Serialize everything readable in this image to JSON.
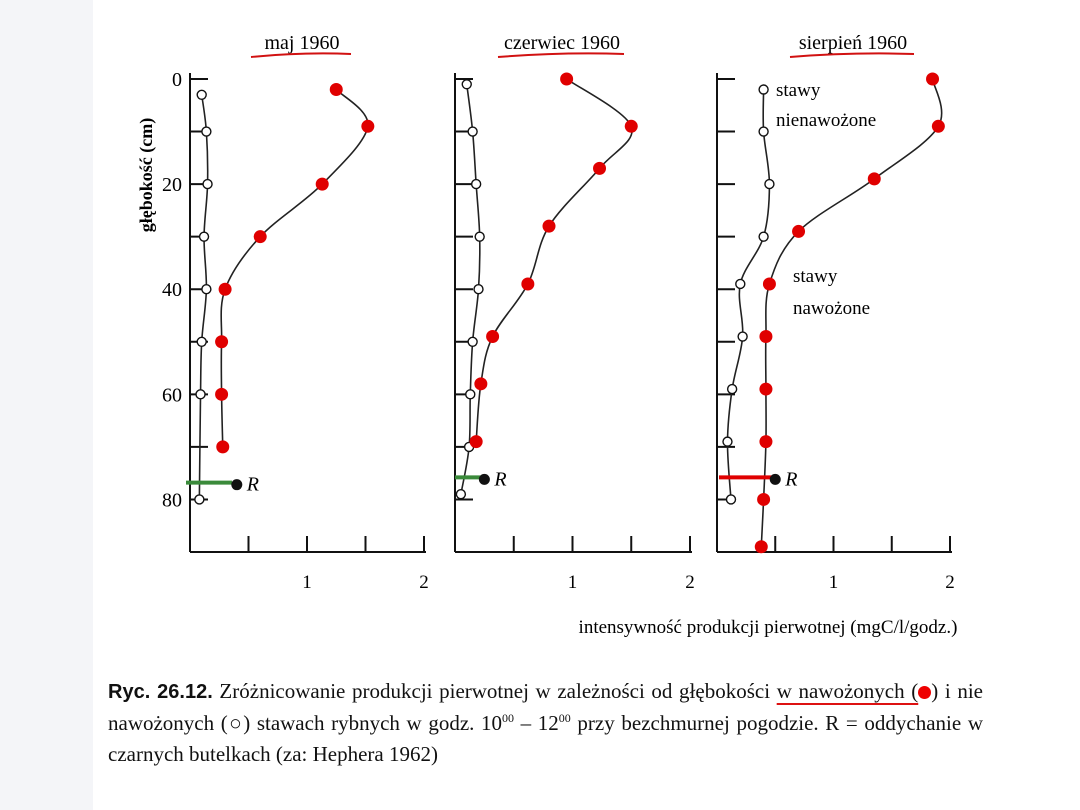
{
  "chart_data": [
    {
      "type": "line",
      "title": "maj 1960",
      "ylabel": "głębokość (cm)",
      "xlabel": "",
      "xlim": [
        0,
        2
      ],
      "ylim": [
        90,
        0
      ],
      "x_ticks": [
        "1",
        "2"
      ],
      "y_ticks": [
        "0",
        "20",
        "40",
        "60",
        "80"
      ],
      "series": [
        {
          "name": "stawy nienawożone",
          "marker": "open",
          "points": [
            [
              0.1,
              3
            ],
            [
              0.14,
              10
            ],
            [
              0.15,
              20
            ],
            [
              0.12,
              30
            ],
            [
              0.14,
              40
            ],
            [
              0.1,
              50
            ],
            [
              0.09,
              60
            ],
            [
              0.08,
              80
            ]
          ]
        },
        {
          "name": "stawy nawożone",
          "marker": "filled",
          "points": [
            [
              1.25,
              2
            ],
            [
              1.52,
              9
            ],
            [
              1.13,
              20
            ],
            [
              0.6,
              30
            ],
            [
              0.3,
              40
            ],
            [
              0.27,
              50
            ],
            [
              0.27,
              60
            ],
            [
              0.28,
              70
            ]
          ]
        },
        {
          "name": "R",
          "marker": "filled",
          "points": [
            [
              0.4,
              77
            ]
          ]
        }
      ],
      "r_label": "R"
    },
    {
      "type": "line",
      "title": "czerwiec 1960",
      "xlabel": "",
      "xlim": [
        0,
        2
      ],
      "ylim": [
        90,
        0
      ],
      "x_ticks": [
        "1",
        "2"
      ],
      "series": [
        {
          "name": "stawy nienawożone",
          "marker": "open",
          "points": [
            [
              0.1,
              1
            ],
            [
              0.15,
              10
            ],
            [
              0.18,
              20
            ],
            [
              0.21,
              30
            ],
            [
              0.2,
              40
            ],
            [
              0.15,
              50
            ],
            [
              0.13,
              60
            ],
            [
              0.12,
              70
            ],
            [
              0.05,
              79
            ]
          ]
        },
        {
          "name": "stawy nawożone",
          "marker": "filled",
          "points": [
            [
              0.95,
              0
            ],
            [
              1.5,
              9
            ],
            [
              1.23,
              17
            ],
            [
              0.8,
              28
            ],
            [
              0.62,
              39
            ],
            [
              0.32,
              49
            ],
            [
              0.22,
              58
            ],
            [
              0.18,
              69
            ]
          ]
        },
        {
          "name": "R",
          "marker": "filled",
          "points": [
            [
              0.25,
              76
            ]
          ]
        }
      ],
      "r_label": "R"
    },
    {
      "type": "line",
      "title": "sierpień 1960",
      "xlabel": "intensywność produkcji pierwotnej (mgC/l/godz.)",
      "xlim": [
        0,
        2
      ],
      "ylim": [
        90,
        0
      ],
      "x_ticks": [
        "1",
        "2"
      ],
      "series": [
        {
          "name": "stawy nienawożone",
          "marker": "open",
          "points": [
            [
              0.4,
              2
            ],
            [
              0.4,
              10
            ],
            [
              0.45,
              20
            ],
            [
              0.4,
              30
            ],
            [
              0.2,
              39
            ],
            [
              0.22,
              49
            ],
            [
              0.13,
              59
            ],
            [
              0.09,
              69
            ],
            [
              0.12,
              80
            ]
          ]
        },
        {
          "name": "stawy nawożone",
          "marker": "filled",
          "points": [
            [
              1.85,
              0
            ],
            [
              1.9,
              9
            ],
            [
              1.35,
              19
            ],
            [
              0.7,
              29
            ],
            [
              0.45,
              39
            ],
            [
              0.42,
              49
            ],
            [
              0.42,
              59
            ],
            [
              0.42,
              69
            ],
            [
              0.4,
              80
            ],
            [
              0.38,
              89
            ]
          ]
        },
        {
          "name": "R",
          "marker": "filled",
          "points": [
            [
              0.5,
              76
            ]
          ]
        }
      ],
      "r_label": "R",
      "annotations": [
        "stawy",
        "nienawożone",
        "stawy",
        "nawożone"
      ]
    }
  ],
  "caption": {
    "label": "Ryc. 26.12.",
    "text1": " Zróżnicowanie produkcji pierwotnej w zależności od głębokości ",
    "highlight": "w nawożonych (",
    "text2": ") i nie nawożonych (○) stawach rybnych w godz. 10",
    "sup1": "00",
    "text3": " – 12",
    "sup2": "00",
    "text4": " przy bezchmurnej pogodzie. R = oddychanie w czarnych butelkach (za: Hephera 1962)"
  },
  "colors": {
    "axis": "#111111",
    "curve": "#222222",
    "marker_red": "#e00000",
    "underline_red": "#d11111",
    "r_line_green": "#3a8a3a",
    "r_line_red": "#e00000"
  }
}
